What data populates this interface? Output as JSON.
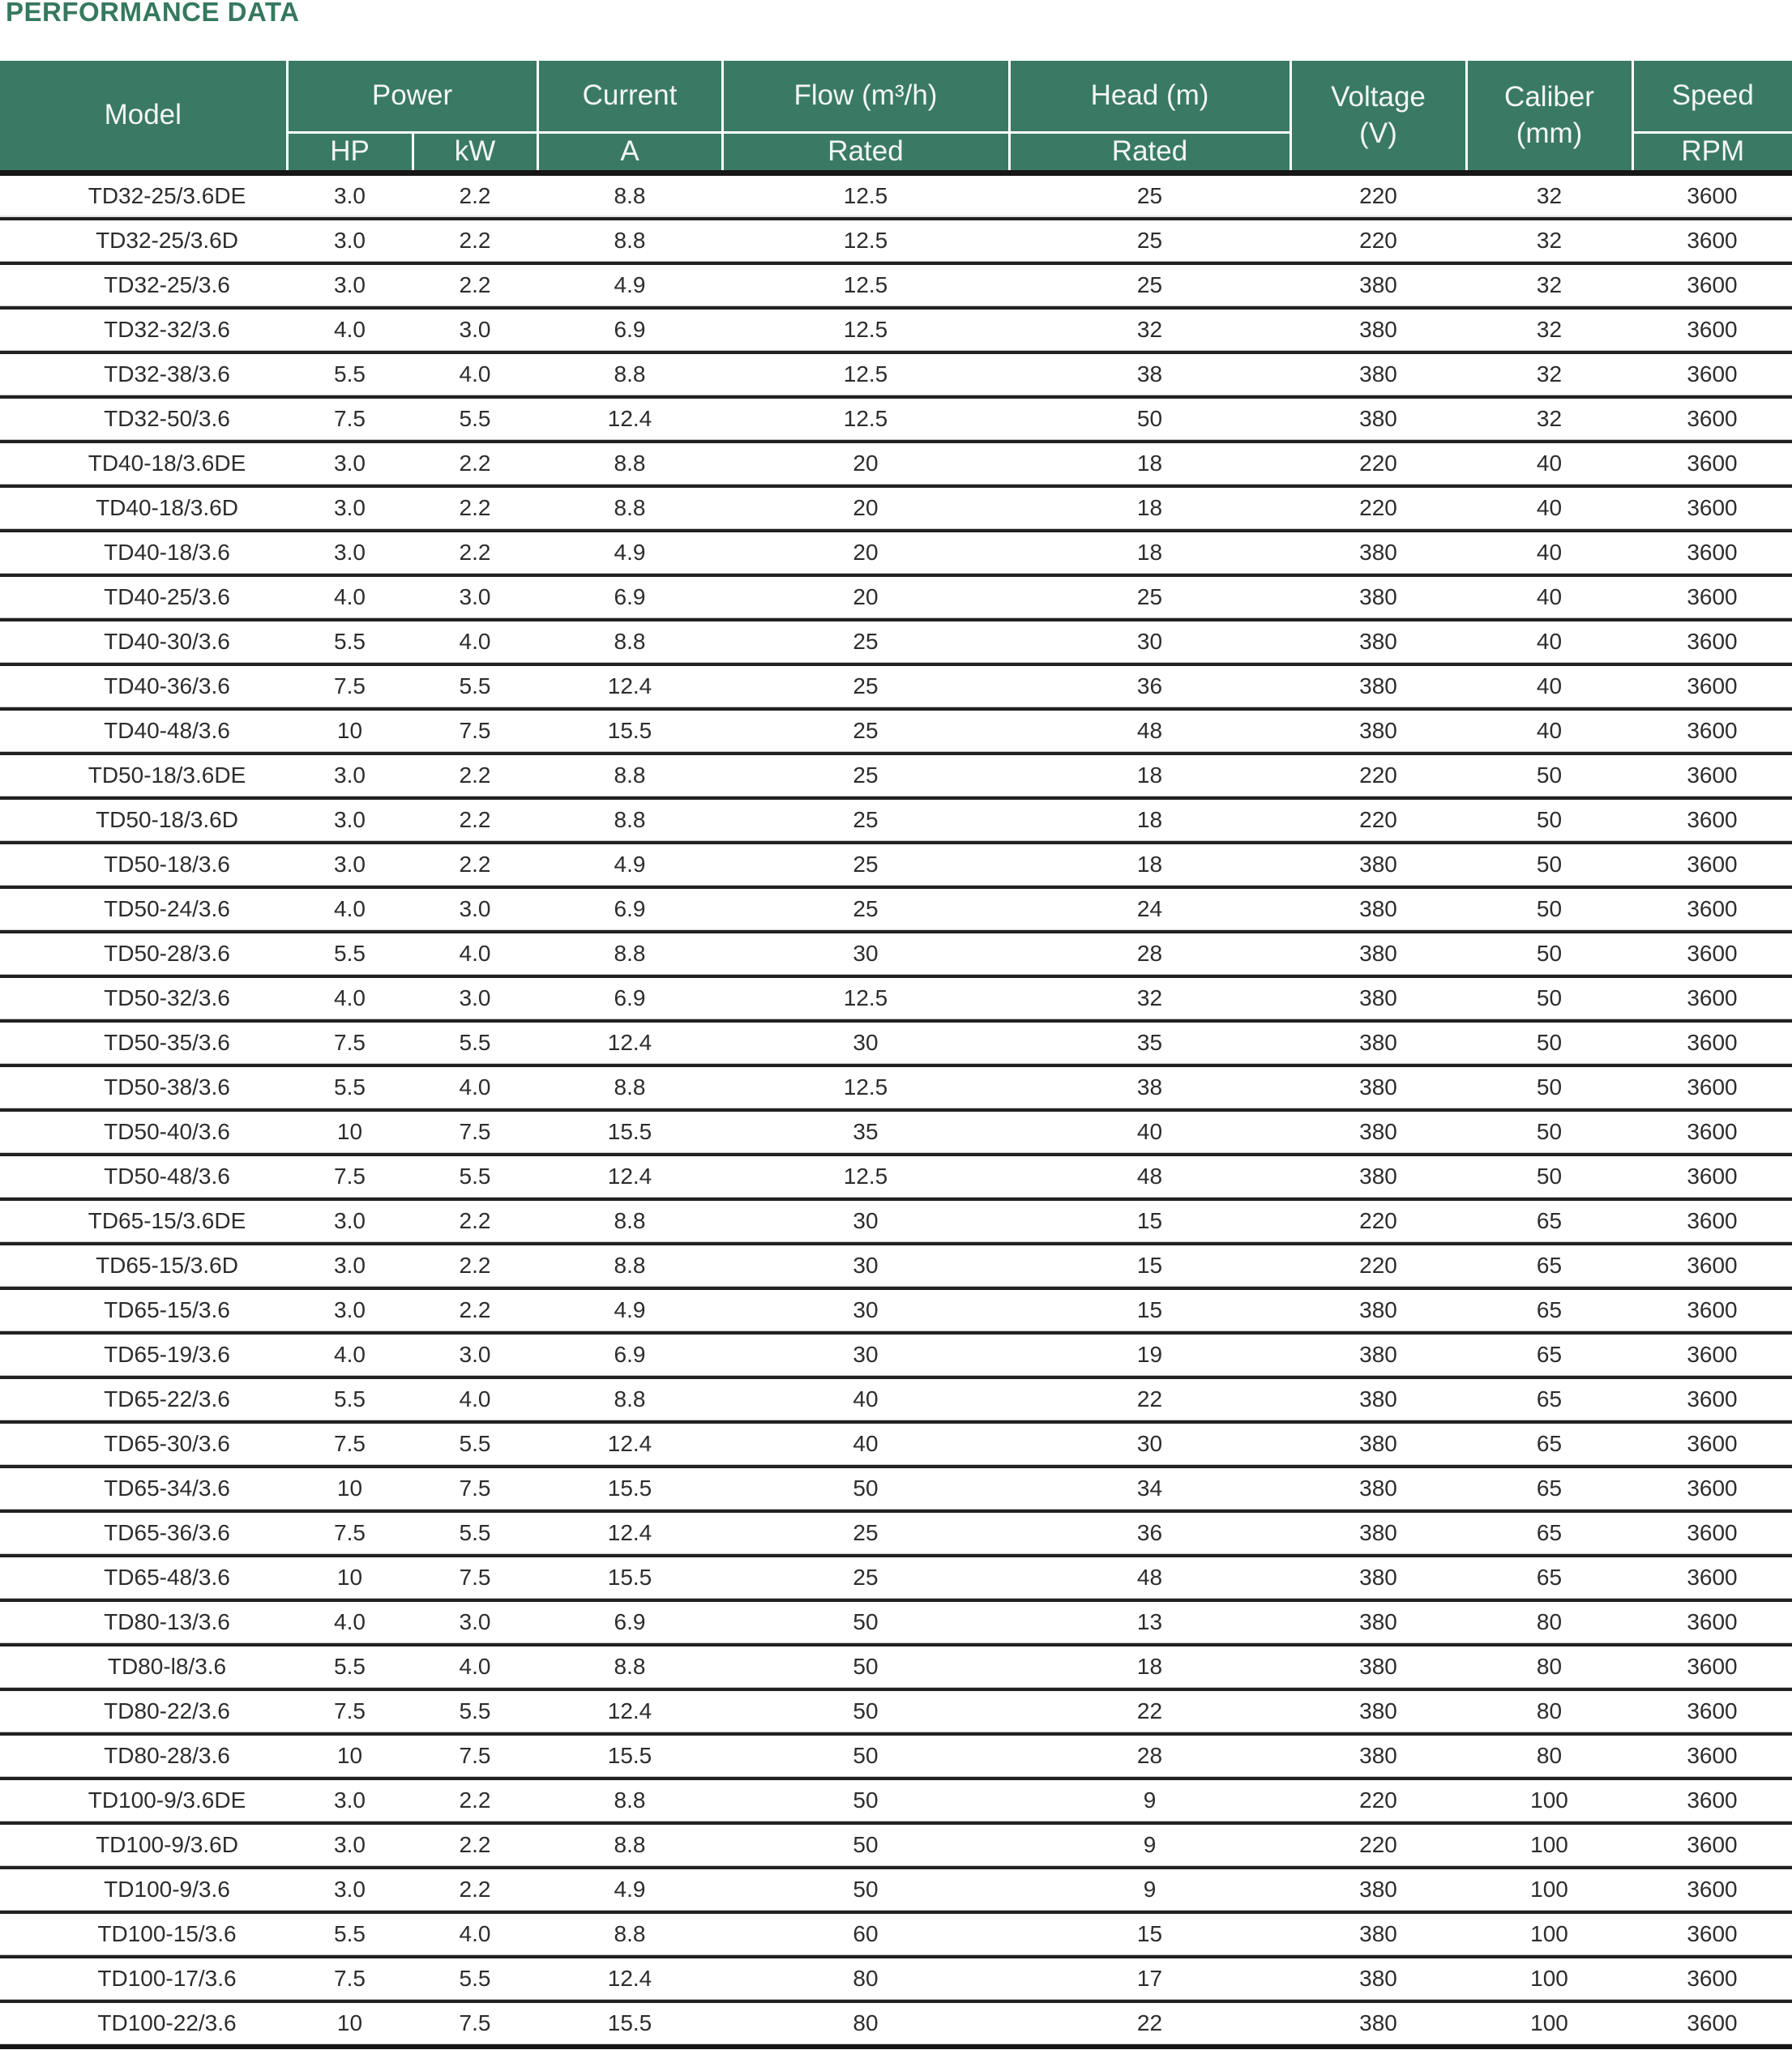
{
  "title": "PERFORMANCE DATA",
  "colors": {
    "header_green": "#3A7A64",
    "title_green": "#35795E",
    "separator_dark": "#212121",
    "separator_hairline": "#C6C6C6"
  },
  "table": {
    "header": {
      "model": "Model",
      "power": "Power",
      "hp": "HP",
      "kw": "kW",
      "current": "Current",
      "a": "A",
      "flow": "Flow (m³/h)",
      "flow_sub": "Rated",
      "head": "Head (m)",
      "head_sub": "Rated",
      "voltage_line1": "Voltage",
      "voltage_line2": "(V)",
      "caliber_line1": "Caliber",
      "caliber_line2": "(mm)",
      "speed": "Speed",
      "speed_sub": "RPM"
    },
    "columns": [
      "Model",
      "Power HP",
      "Power kW",
      "Current A",
      "Flow (m³/h) Rated",
      "Head (m) Rated",
      "Voltage (V)",
      "Caliber (mm)",
      "Speed RPM"
    ],
    "rows": [
      [
        "TD32-25/3.6DE",
        "3.0",
        "2.2",
        "8.8",
        "12.5",
        "25",
        "220",
        "32",
        "3600"
      ],
      [
        "TD32-25/3.6D",
        "3.0",
        "2.2",
        "8.8",
        "12.5",
        "25",
        "220",
        "32",
        "3600"
      ],
      [
        "TD32-25/3.6",
        "3.0",
        "2.2",
        "4.9",
        "12.5",
        "25",
        "380",
        "32",
        "3600"
      ],
      [
        "TD32-32/3.6",
        "4.0",
        "3.0",
        "6.9",
        "12.5",
        "32",
        "380",
        "32",
        "3600"
      ],
      [
        "TD32-38/3.6",
        "5.5",
        "4.0",
        "8.8",
        "12.5",
        "38",
        "380",
        "32",
        "3600"
      ],
      [
        "TD32-50/3.6",
        "7.5",
        "5.5",
        "12.4",
        "12.5",
        "50",
        "380",
        "32",
        "3600"
      ],
      [
        "TD40-18/3.6DE",
        "3.0",
        "2.2",
        "8.8",
        "20",
        "18",
        "220",
        "40",
        "3600"
      ],
      [
        "TD40-18/3.6D",
        "3.0",
        "2.2",
        "8.8",
        "20",
        "18",
        "220",
        "40",
        "3600"
      ],
      [
        "TD40-18/3.6",
        "3.0",
        "2.2",
        "4.9",
        "20",
        "18",
        "380",
        "40",
        "3600"
      ],
      [
        "TD40-25/3.6",
        "4.0",
        "3.0",
        "6.9",
        "20",
        "25",
        "380",
        "40",
        "3600"
      ],
      [
        "TD40-30/3.6",
        "5.5",
        "4.0",
        "8.8",
        "25",
        "30",
        "380",
        "40",
        "3600"
      ],
      [
        "TD40-36/3.6",
        "7.5",
        "5.5",
        "12.4",
        "25",
        "36",
        "380",
        "40",
        "3600"
      ],
      [
        "TD40-48/3.6",
        "10",
        "7.5",
        "15.5",
        "25",
        "48",
        "380",
        "40",
        "3600"
      ],
      [
        "TD50-18/3.6DE",
        "3.0",
        "2.2",
        "8.8",
        "25",
        "18",
        "220",
        "50",
        "3600"
      ],
      [
        "TD50-18/3.6D",
        "3.0",
        "2.2",
        "8.8",
        "25",
        "18",
        "220",
        "50",
        "3600"
      ],
      [
        "TD50-18/3.6",
        "3.0",
        "2.2",
        "4.9",
        "25",
        "18",
        "380",
        "50",
        "3600"
      ],
      [
        "TD50-24/3.6",
        "4.0",
        "3.0",
        "6.9",
        "25",
        "24",
        "380",
        "50",
        "3600"
      ],
      [
        "TD50-28/3.6",
        "5.5",
        "4.0",
        "8.8",
        "30",
        "28",
        "380",
        "50",
        "3600"
      ],
      [
        "TD50-32/3.6",
        "4.0",
        "3.0",
        "6.9",
        "12.5",
        "32",
        "380",
        "50",
        "3600"
      ],
      [
        "TD50-35/3.6",
        "7.5",
        "5.5",
        "12.4",
        "30",
        "35",
        "380",
        "50",
        "3600"
      ],
      [
        "TD50-38/3.6",
        "5.5",
        "4.0",
        "8.8",
        "12.5",
        "38",
        "380",
        "50",
        "3600"
      ],
      [
        "TD50-40/3.6",
        "10",
        "7.5",
        "15.5",
        "35",
        "40",
        "380",
        "50",
        "3600"
      ],
      [
        "TD50-48/3.6",
        "7.5",
        "5.5",
        "12.4",
        "12.5",
        "48",
        "380",
        "50",
        "3600"
      ],
      [
        "TD65-15/3.6DE",
        "3.0",
        "2.2",
        "8.8",
        "30",
        "15",
        "220",
        "65",
        "3600"
      ],
      [
        "TD65-15/3.6D",
        "3.0",
        "2.2",
        "8.8",
        "30",
        "15",
        "220",
        "65",
        "3600"
      ],
      [
        "TD65-15/3.6",
        "3.0",
        "2.2",
        "4.9",
        "30",
        "15",
        "380",
        "65",
        "3600"
      ],
      [
        "TD65-19/3.6",
        "4.0",
        "3.0",
        "6.9",
        "30",
        "19",
        "380",
        "65",
        "3600"
      ],
      [
        "TD65-22/3.6",
        "5.5",
        "4.0",
        "8.8",
        "40",
        "22",
        "380",
        "65",
        "3600"
      ],
      [
        "TD65-30/3.6",
        "7.5",
        "5.5",
        "12.4",
        "40",
        "30",
        "380",
        "65",
        "3600"
      ],
      [
        "TD65-34/3.6",
        "10",
        "7.5",
        "15.5",
        "50",
        "34",
        "380",
        "65",
        "3600"
      ],
      [
        "TD65-36/3.6",
        "7.5",
        "5.5",
        "12.4",
        "25",
        "36",
        "380",
        "65",
        "3600"
      ],
      [
        "TD65-48/3.6",
        "10",
        "7.5",
        "15.5",
        "25",
        "48",
        "380",
        "65",
        "3600"
      ],
      [
        "TD80-13/3.6",
        "4.0",
        "3.0",
        "6.9",
        "50",
        "13",
        "380",
        "80",
        "3600"
      ],
      [
        "TD80-l8/3.6",
        "5.5",
        "4.0",
        "8.8",
        "50",
        "18",
        "380",
        "80",
        "3600"
      ],
      [
        "TD80-22/3.6",
        "7.5",
        "5.5",
        "12.4",
        "50",
        "22",
        "380",
        "80",
        "3600"
      ],
      [
        "TD80-28/3.6",
        "10",
        "7.5",
        "15.5",
        "50",
        "28",
        "380",
        "80",
        "3600"
      ],
      [
        "TD100-9/3.6DE",
        "3.0",
        "2.2",
        "8.8",
        "50",
        "9",
        "220",
        "100",
        "3600"
      ],
      [
        "TD100-9/3.6D",
        "3.0",
        "2.2",
        "8.8",
        "50",
        "9",
        "220",
        "100",
        "3600"
      ],
      [
        "TD100-9/3.6",
        "3.0",
        "2.2",
        "4.9",
        "50",
        "9",
        "380",
        "100",
        "3600"
      ],
      [
        "TD100-15/3.6",
        "5.5",
        "4.0",
        "8.8",
        "60",
        "15",
        "380",
        "100",
        "3600"
      ],
      [
        "TD100-17/3.6",
        "7.5",
        "5.5",
        "12.4",
        "80",
        "17",
        "380",
        "100",
        "3600"
      ],
      [
        "TD100-22/3.6",
        "10",
        "7.5",
        "15.5",
        "80",
        "22",
        "380",
        "100",
        "3600"
      ]
    ]
  }
}
